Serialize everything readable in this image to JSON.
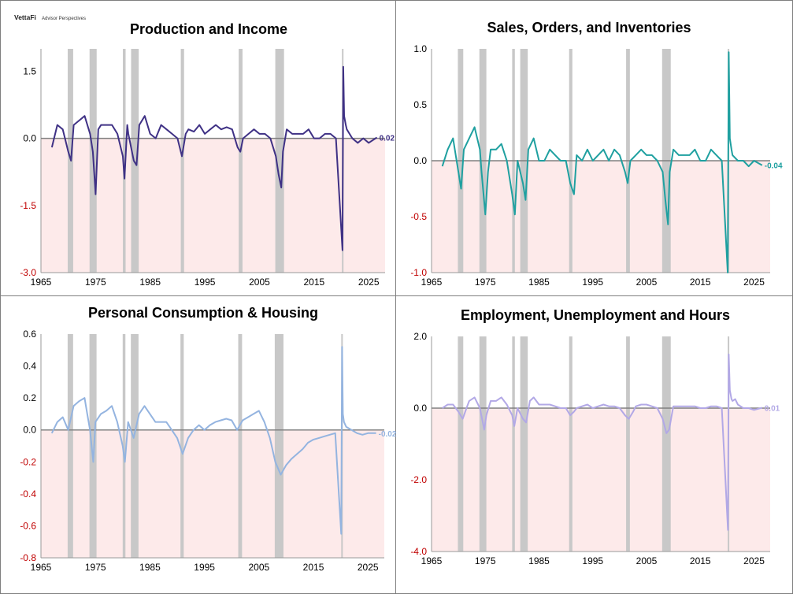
{
  "brand": {
    "name": "VettaFi",
    "sub": "Advisor Perspectives"
  },
  "recessions": [
    [
      1969.9,
      1970.9
    ],
    [
      1973.9,
      1975.2
    ],
    [
      1980.0,
      1980.5
    ],
    [
      1981.5,
      1982.9
    ],
    [
      1990.6,
      1991.2
    ],
    [
      2001.2,
      2001.9
    ],
    [
      2007.9,
      2009.5
    ],
    [
      2020.1,
      2020.3
    ]
  ],
  "colors": {
    "negative_fill": "#fdeaea",
    "recession": "#c8c8c8",
    "zero_line": "#808080",
    "border": "#7f7f7f"
  },
  "chart_data": [
    {
      "type": "line",
      "title": "Production and Income",
      "color": "#3f3185",
      "xlim": [
        1965,
        2028
      ],
      "ylim": [
        -3.0,
        2.0
      ],
      "xticks": [
        1965,
        1975,
        1985,
        1995,
        2005,
        2015,
        2025
      ],
      "xtick_labels": [
        "1965",
        "1975",
        "1985",
        "1995",
        "2005",
        "2015",
        "2025"
      ],
      "yticks": [
        -3.0,
        -1.5,
        0.0,
        1.5
      ],
      "ytick_labels": [
        "-3.0",
        "-1.5",
        "0.0",
        "1.5"
      ],
      "last_value": 0.02,
      "last_label": "0.02",
      "series": [
        {
          "x": [
            1967,
            1968,
            1969,
            1970,
            1970.5,
            1971,
            1972,
            1973,
            1974,
            1974.5,
            1975,
            1975.5,
            1976,
            1977,
            1978,
            1979,
            1980,
            1980.3,
            1980.8,
            1981,
            1982,
            1982.5,
            1983,
            1984,
            1985,
            1986,
            1987,
            1988,
            1989,
            1990,
            1990.8,
            1991.5,
            1992,
            1993,
            1994,
            1995,
            1996,
            1997,
            1998,
            1999,
            2000,
            2001,
            2001.5,
            2002,
            2003,
            2004,
            2005,
            2006,
            2007,
            2008,
            2008.5,
            2009,
            2009.3,
            2010,
            2011,
            2012,
            2013,
            2014,
            2015,
            2016,
            2017,
            2018,
            2019,
            2020.2,
            2020.35,
            2020.5,
            2020.8,
            2021,
            2022,
            2023,
            2024,
            2025,
            2026.5
          ],
          "y": [
            -0.2,
            0.3,
            0.2,
            -0.3,
            -0.5,
            0.3,
            0.4,
            0.5,
            0.1,
            -0.3,
            -1.25,
            0.2,
            0.3,
            0.3,
            0.3,
            0.1,
            -0.4,
            -0.9,
            0.3,
            0.1,
            -0.5,
            -0.6,
            0.3,
            0.5,
            0.1,
            0.0,
            0.3,
            0.2,
            0.1,
            0.0,
            -0.4,
            0.1,
            0.2,
            0.15,
            0.3,
            0.1,
            0.2,
            0.3,
            0.2,
            0.25,
            0.2,
            -0.2,
            -0.3,
            0.0,
            0.1,
            0.2,
            0.1,
            0.1,
            0.0,
            -0.4,
            -0.8,
            -1.1,
            -0.3,
            0.2,
            0.1,
            0.1,
            0.1,
            0.2,
            0.0,
            0.0,
            0.1,
            0.1,
            0.0,
            -2.5,
            1.6,
            0.5,
            0.3,
            0.2,
            0.0,
            -0.1,
            0.0,
            -0.1,
            0.02
          ]
        }
      ]
    },
    {
      "type": "line",
      "title": "Sales, Orders, and Inventories",
      "color": "#1fa0a0",
      "xlim": [
        1965,
        2028
      ],
      "ylim": [
        -1.0,
        1.0
      ],
      "xticks": [
        1965,
        1975,
        1985,
        1995,
        2005,
        2015,
        2025
      ],
      "xtick_labels": [
        "1965",
        "1975",
        "1985",
        "1995",
        "2005",
        "2015",
        "2025"
      ],
      "yticks": [
        -1.0,
        -0.5,
        0.0,
        0.5,
        1.0
      ],
      "ytick_labels": [
        "-1.0",
        "-0.5",
        "0.0",
        "0.5",
        "1.0"
      ],
      "last_value": -0.04,
      "last_label": "-0.04",
      "series": [
        {
          "x": [
            1967,
            1968,
            1969,
            1970,
            1970.5,
            1971,
            1972,
            1973,
            1974,
            1974.3,
            1975,
            1975.5,
            1976,
            1977,
            1978,
            1979,
            1980,
            1980.5,
            1981,
            1982,
            1982.5,
            1983,
            1984,
            1985,
            1986,
            1987,
            1988,
            1989,
            1990,
            1990.8,
            1991.5,
            1992,
            1993,
            1994,
            1995,
            1996,
            1997,
            1998,
            1999,
            2000,
            2001,
            2001.5,
            2002,
            2003,
            2004,
            2005,
            2006,
            2007,
            2008,
            2008.5,
            2009,
            2009.3,
            2010,
            2011,
            2012,
            2013,
            2014,
            2015,
            2016,
            2017,
            2018,
            2019,
            2020.1,
            2020.3,
            2020.5,
            2020.8,
            2021,
            2022,
            2023,
            2024,
            2025,
            2026.5
          ],
          "y": [
            -0.05,
            0.1,
            0.2,
            -0.1,
            -0.25,
            0.1,
            0.2,
            0.3,
            0.1,
            -0.1,
            -0.48,
            -0.1,
            0.1,
            0.1,
            0.15,
            0.0,
            -0.3,
            -0.48,
            0.0,
            -0.2,
            -0.35,
            0.1,
            0.2,
            0.0,
            0.0,
            0.1,
            0.05,
            0.0,
            0.0,
            -0.2,
            -0.3,
            0.05,
            0.0,
            0.1,
            0.0,
            0.05,
            0.1,
            0.0,
            0.1,
            0.05,
            -0.1,
            -0.2,
            0.0,
            0.05,
            0.1,
            0.05,
            0.05,
            0.0,
            -0.1,
            -0.35,
            -0.57,
            -0.1,
            0.1,
            0.05,
            0.05,
            0.05,
            0.1,
            0.0,
            0.0,
            0.1,
            0.05,
            0.0,
            -1.0,
            0.97,
            0.2,
            0.1,
            0.05,
            0.0,
            0.0,
            -0.05,
            0.0,
            -0.04
          ]
        }
      ]
    },
    {
      "type": "line",
      "title": "Personal Consumption & Housing",
      "color": "#94b4e0",
      "xlim": [
        1965,
        2028
      ],
      "ylim": [
        -0.8,
        0.6
      ],
      "xticks": [
        1965,
        1975,
        1985,
        1995,
        2005,
        2015,
        2025
      ],
      "xtick_labels": [
        "1965",
        "1975",
        "1985",
        "1995",
        "2005",
        "2015",
        "2025"
      ],
      "yticks": [
        -0.8,
        -0.6,
        -0.4,
        -0.2,
        0.0,
        0.2,
        0.4,
        0.6
      ],
      "ytick_labels": [
        "-0.8",
        "-0.6",
        "-0.4",
        "-0.2",
        "0.0",
        "0.2",
        "0.4",
        "0.6"
      ],
      "last_value": -0.02,
      "last_label": "-0.02",
      "series": [
        {
          "x": [
            1967,
            1968,
            1969,
            1970,
            1971,
            1972,
            1973,
            1973.5,
            1974,
            1974.6,
            1975,
            1976,
            1977,
            1978,
            1979,
            1980,
            1980.4,
            1981,
            1982,
            1983,
            1984,
            1985,
            1986,
            1987,
            1988,
            1989,
            1990,
            1991,
            1992,
            1993,
            1994,
            1995,
            1996,
            1997,
            1998,
            1999,
            2000,
            2001,
            2002,
            2003,
            2004,
            2005,
            2006,
            2007,
            2008,
            2009,
            2010,
            2011,
            2012,
            2013,
            2014,
            2015,
            2016,
            2017,
            2018,
            2019,
            2020.1,
            2020.25,
            2020.4,
            2020.6,
            2021,
            2022,
            2023,
            2024,
            2025,
            2026.5
          ],
          "y": [
            -0.02,
            0.05,
            0.08,
            0.0,
            0.15,
            0.18,
            0.2,
            0.1,
            0.0,
            -0.2,
            0.05,
            0.1,
            0.12,
            0.15,
            0.05,
            -0.1,
            -0.2,
            0.05,
            -0.05,
            0.1,
            0.15,
            0.1,
            0.05,
            0.05,
            0.05,
            0.0,
            -0.05,
            -0.15,
            -0.05,
            0.0,
            0.03,
            0.0,
            0.03,
            0.05,
            0.06,
            0.07,
            0.06,
            0.0,
            0.06,
            0.08,
            0.1,
            0.12,
            0.05,
            -0.05,
            -0.2,
            -0.28,
            -0.22,
            -0.18,
            -0.15,
            -0.12,
            -0.08,
            -0.06,
            -0.05,
            -0.04,
            -0.03,
            -0.02,
            -0.65,
            0.52,
            0.1,
            0.05,
            0.02,
            0.0,
            -0.02,
            -0.03,
            -0.02,
            -0.02
          ]
        }
      ]
    },
    {
      "type": "line",
      "title": "Employment, Unemployment and Hours",
      "color": "#b2a8e6",
      "xlim": [
        1965,
        2028
      ],
      "ylim": [
        -4.0,
        2.0
      ],
      "xticks": [
        1965,
        1975,
        1985,
        1995,
        2005,
        2015,
        2025
      ],
      "xtick_labels": [
        "1965",
        "1975",
        "1985",
        "1995",
        "2005",
        "2015",
        "2025"
      ],
      "yticks": [
        -4.0,
        -2.0,
        0.0,
        2.0
      ],
      "ytick_labels": [
        "-4.0",
        "-2.0",
        "0.0",
        "2.0"
      ],
      "last_value": 0.01,
      "last_label": "0.01",
      "series": [
        {
          "x": [
            1967,
            1968,
            1969,
            1970,
            1970.8,
            1971.5,
            1972,
            1973,
            1974,
            1974.8,
            1975.2,
            1976,
            1977,
            1978,
            1979,
            1980,
            1980.4,
            1981,
            1982,
            1982.6,
            1983.3,
            1984,
            1985,
            1986,
            1987,
            1988,
            1989,
            1990,
            1990.8,
            1991.5,
            1992,
            1993,
            1994,
            1995,
            1996,
            1997,
            1998,
            1999,
            2000,
            2001,
            2001.7,
            2002.5,
            2003,
            2004,
            2005,
            2006,
            2007,
            2008,
            2008.7,
            2009.2,
            2009.8,
            2010,
            2011,
            2012,
            2013,
            2014,
            2015,
            2016,
            2017,
            2018,
            2019,
            2020.15,
            2020.3,
            2020.5,
            2020.8,
            2021,
            2021.5,
            2022,
            2023,
            2024,
            2025,
            2026.5
          ],
          "y": [
            0.0,
            0.1,
            0.1,
            -0.1,
            -0.3,
            0.0,
            0.2,
            0.3,
            0.0,
            -0.6,
            -0.2,
            0.2,
            0.2,
            0.3,
            0.1,
            -0.2,
            -0.5,
            0.0,
            -0.3,
            -0.4,
            0.2,
            0.3,
            0.1,
            0.1,
            0.1,
            0.05,
            0.0,
            0.0,
            -0.2,
            -0.1,
            0.0,
            0.05,
            0.1,
            0.0,
            0.05,
            0.1,
            0.05,
            0.05,
            0.0,
            -0.2,
            -0.3,
            -0.1,
            0.05,
            0.1,
            0.1,
            0.05,
            0.0,
            -0.3,
            -0.7,
            -0.6,
            -0.1,
            0.05,
            0.05,
            0.05,
            0.05,
            0.05,
            0.0,
            0.0,
            0.05,
            0.05,
            0.0,
            -3.4,
            1.5,
            0.5,
            0.25,
            0.2,
            0.25,
            0.1,
            0.0,
            0.0,
            -0.05,
            0.01
          ]
        }
      ]
    }
  ]
}
